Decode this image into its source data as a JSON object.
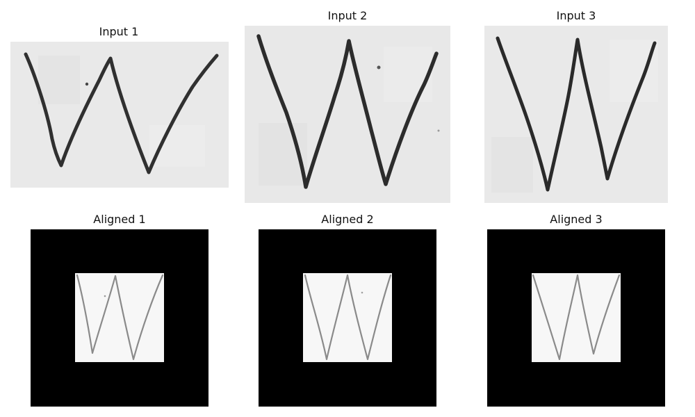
{
  "figure": {
    "inputs": [
      {
        "title": "Input 1"
      },
      {
        "title": "Input 2"
      },
      {
        "title": "Input 3"
      }
    ],
    "aligned": [
      {
        "title": "Aligned 1"
      },
      {
        "title": "Aligned 2"
      },
      {
        "title": "Aligned 3"
      }
    ]
  },
  "colors": {
    "input_background": "#e8e8e8",
    "ink": "#2e2e2e",
    "aligned_background": "#000000",
    "aligned_patch": "#f7f7f7",
    "aligned_ink": "#8a8a8a"
  }
}
